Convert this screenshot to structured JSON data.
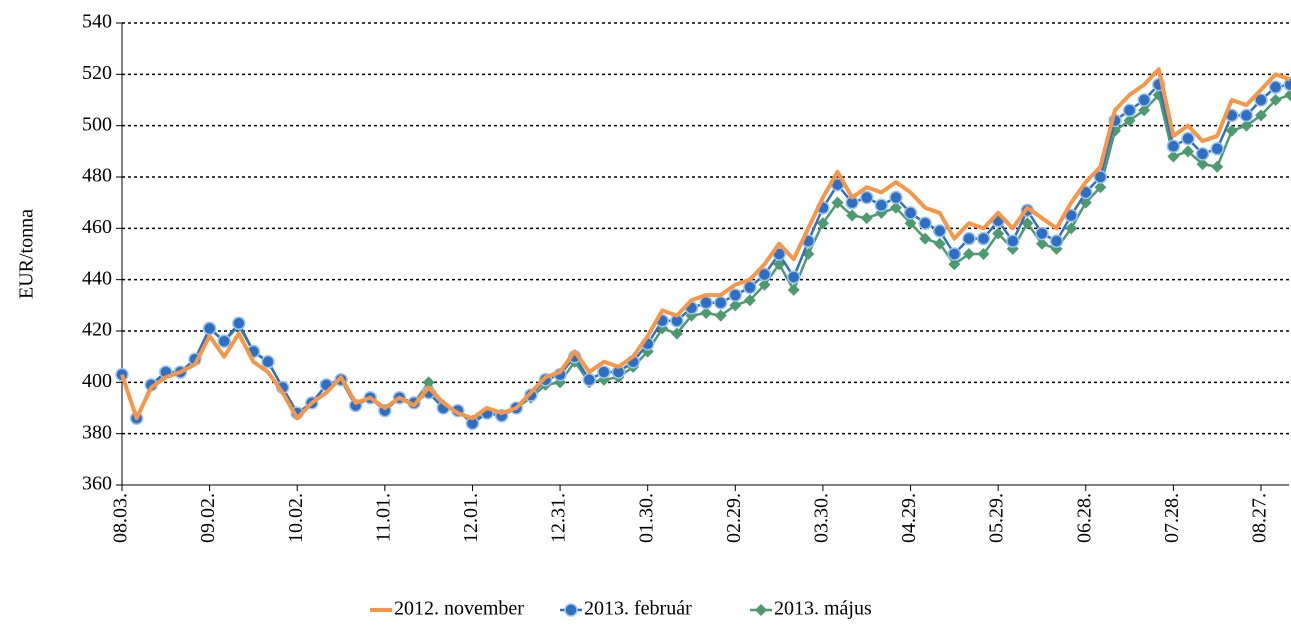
{
  "chart_data": {
    "type": "line",
    "y_label": "EUR/tonna",
    "categories": [
      "08.03.",
      null,
      null,
      null,
      null,
      null,
      "09.02.",
      null,
      null,
      null,
      null,
      null,
      "10.02.",
      null,
      null,
      null,
      null,
      null,
      "11.01.",
      null,
      null,
      null,
      null,
      null,
      "12.01.",
      null,
      null,
      null,
      null,
      null,
      "12.31.",
      null,
      null,
      null,
      null,
      null,
      "01.30.",
      null,
      null,
      null,
      null,
      null,
      "02.29.",
      null,
      null,
      null,
      null,
      null,
      "03.30.",
      null,
      null,
      null,
      null,
      null,
      "04.29.",
      null,
      null,
      null,
      null,
      null,
      "05.29.",
      null,
      null,
      null,
      null,
      null,
      "06.28.",
      null,
      null,
      null,
      null,
      null,
      "07.28.",
      null,
      null,
      null,
      null,
      null,
      "08.27.",
      null,
      null
    ],
    "series": [
      {
        "name": "2012. november",
        "color": "#f79646",
        "marker": "none",
        "values": [
          403,
          386,
          398,
          402,
          404,
          407,
          418,
          410,
          419,
          408,
          404,
          396,
          386,
          392,
          396,
          402,
          392,
          394,
          390,
          394,
          391,
          398,
          392,
          388,
          386,
          390,
          388,
          390,
          396,
          402,
          404,
          412,
          404,
          408,
          406,
          410,
          418,
          428,
          426,
          432,
          434,
          434,
          438,
          440,
          446,
          454,
          448,
          460,
          472,
          482,
          472,
          476,
          474,
          478,
          474,
          468,
          466,
          456,
          462,
          460,
          466,
          460,
          468,
          464,
          460,
          470,
          478,
          484,
          506,
          512,
          516,
          522,
          496,
          500,
          494,
          496,
          510,
          508,
          514,
          520,
          518
        ]
      },
      {
        "name": "2013. február",
        "color": "#2e6fc4",
        "marker": "circle",
        "values": [
          403,
          386,
          399,
          404,
          404,
          409,
          421,
          416,
          423,
          412,
          408,
          398,
          388,
          392,
          399,
          401,
          391,
          394,
          389,
          394,
          392,
          396,
          390,
          389,
          384,
          388,
          387,
          390,
          395,
          401,
          403,
          410,
          401,
          404,
          404,
          408,
          415,
          424,
          424,
          429,
          431,
          431,
          434,
          437,
          442,
          450,
          441,
          455,
          468,
          477,
          470,
          472,
          469,
          472,
          466,
          462,
          459,
          450,
          456,
          456,
          463,
          455,
          467,
          458,
          455,
          465,
          474,
          480,
          502,
          506,
          510,
          516,
          492,
          495,
          489,
          491,
          504,
          504,
          510,
          515,
          516
        ]
      },
      {
        "name": "2013. május",
        "color": "#4e9a6f",
        "marker": "diamond",
        "values": [
          403,
          386,
          399,
          404,
          404,
          409,
          421,
          416,
          422,
          412,
          408,
          398,
          388,
          392,
          399,
          401,
          391,
          394,
          389,
          394,
          392,
          400,
          391,
          389,
          385,
          388,
          387,
          390,
          394,
          399,
          400,
          408,
          400,
          401,
          402,
          406,
          412,
          421,
          419,
          426,
          427,
          426,
          430,
          432,
          438,
          446,
          436,
          450,
          462,
          470,
          465,
          464,
          466,
          468,
          462,
          456,
          454,
          446,
          450,
          450,
          458,
          452,
          462,
          454,
          452,
          460,
          470,
          476,
          498,
          502,
          506,
          512,
          488,
          490,
          485,
          484,
          498,
          500,
          504,
          510,
          512
        ]
      }
    ],
    "ylim": [
      360,
      540
    ],
    "yticks": [
      360,
      380,
      400,
      420,
      440,
      460,
      480,
      500,
      520,
      540
    ],
    "grid": true,
    "legend": "bottom"
  }
}
